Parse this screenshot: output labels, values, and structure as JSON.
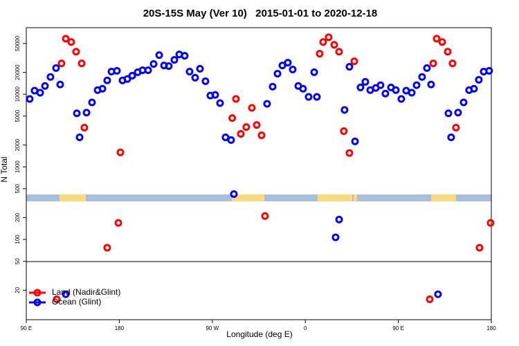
{
  "chart_data": {
    "type": "scatter",
    "title": "20S-15S May (Ver 10)   2015-01-01 to 2020-12-18",
    "xlabel": "Longitude (deg E)",
    "ylabel": "N Total",
    "log_y": true,
    "legend": "lower left",
    "xlim": [
      90,
      540
    ],
    "xticks": [
      {
        "value": 90,
        "label": "90 E"
      },
      180,
      {
        "value": 270,
        "label": "90 W"
      },
      {
        "value": 360,
        "label": "0"
      },
      {
        "value": 450,
        "label": "90 E"
      },
      {
        "value": 540,
        "label": "180"
      }
    ],
    "ylim": [
      7.85,
      82500
    ],
    "yticks": [
      20,
      50,
      100,
      200,
      500,
      1000,
      2000,
      5000,
      10000,
      20000,
      50000
    ],
    "series": [
      {
        "name": "Land (Nadir&Glint)",
        "color": "#ff0000",
        "x": [
          119.5,
          124.1,
          128.2,
          133.5,
          138.2,
          143.6,
          146.2,
          168.3,
          179.1,
          181.1,
          289.3,
          292.9,
          297.6,
          302.9,
          308.3,
          313.0,
          317.7,
          321.0,
          373.9,
          377.3,
          382.6,
          388.0,
          392.7,
          397.3,
          402.7,
          407.4,
          480.4,
          483.8,
          487.1,
          492.5,
          497.8,
          502.5,
          505.8,
          528.6,
          539.3
        ],
        "values": [
          15,
          26600,
          58200,
          52300,
          38500,
          26600,
          3460,
          77,
          169,
          1580,
          4690,
          8600,
          2840,
          3530,
          6490,
          3770,
          2720,
          210,
          36100,
          52300,
          60800,
          47900,
          38500,
          3100,
          1550,
          28400,
          15,
          26600,
          58200,
          52300,
          38500,
          26600,
          3460,
          77,
          169
        ]
      },
      {
        "name": "Ocean (Glint)",
        "color": "#0000ff",
        "x": [
          93.3,
          98.0,
          103.4,
          108.1,
          113.4,
          118.8,
          122.8,
          128.2,
          138.9,
          141.6,
          148.3,
          153.6,
          159.0,
          163.7,
          168.3,
          172.4,
          177.7,
          183.1,
          187.8,
          192.5,
          197.8,
          202.5,
          207.9,
          213.2,
          218.6,
          223.3,
          227.9,
          233.3,
          238.0,
          243.3,
          248.0,
          253.4,
          258.1,
          263.4,
          268.1,
          272.8,
          277.5,
          282.8,
          288.2,
          290.9,
          323.0,
          328.4,
          333.1,
          337.8,
          343.1,
          347.8,
          353.2,
          357.8,
          363.2,
          368.6,
          371.2,
          389.3,
          392.7,
          398.0,
          402.7,
          408.1,
          413.4,
          418.1,
          422.8,
          428.2,
          432.8,
          437.5,
          442.9,
          447.6,
          452.9,
          457.6,
          463.0,
          467.7,
          473.0,
          477.7,
          481.7,
          488.4,
          498.5,
          501.1,
          507.8,
          513.2,
          518.5,
          523.2,
          527.9,
          532.6,
          537.9
        ],
        "values": [
          8600,
          11200,
          10500,
          13000,
          17300,
          22900,
          13600,
          17.6,
          5460,
          2550,
          5580,
          7720,
          11400,
          11900,
          15500,
          20500,
          21000,
          15500,
          16200,
          18000,
          20100,
          21400,
          21400,
          26100,
          34600,
          24900,
          24400,
          29700,
          35300,
          33800,
          20500,
          16900,
          22400,
          15100,
          9590,
          9800,
          7550,
          2550,
          2340,
          421,
          7390,
          12700,
          19200,
          24900,
          27200,
          21900,
          13000,
          11900,
          9190,
          20100,
          9190,
          107,
          188,
          6080,
          23900,
          2240,
          12400,
          14800,
          11400,
          12200,
          13300,
          10200,
          12400,
          11400,
          8600,
          11200,
          10500,
          13300,
          17300,
          22900,
          13600,
          17.6,
          5460,
          2550,
          5580,
          7720,
          11400,
          11900,
          15800,
          20500,
          21000
        ]
      }
    ]
  }
}
